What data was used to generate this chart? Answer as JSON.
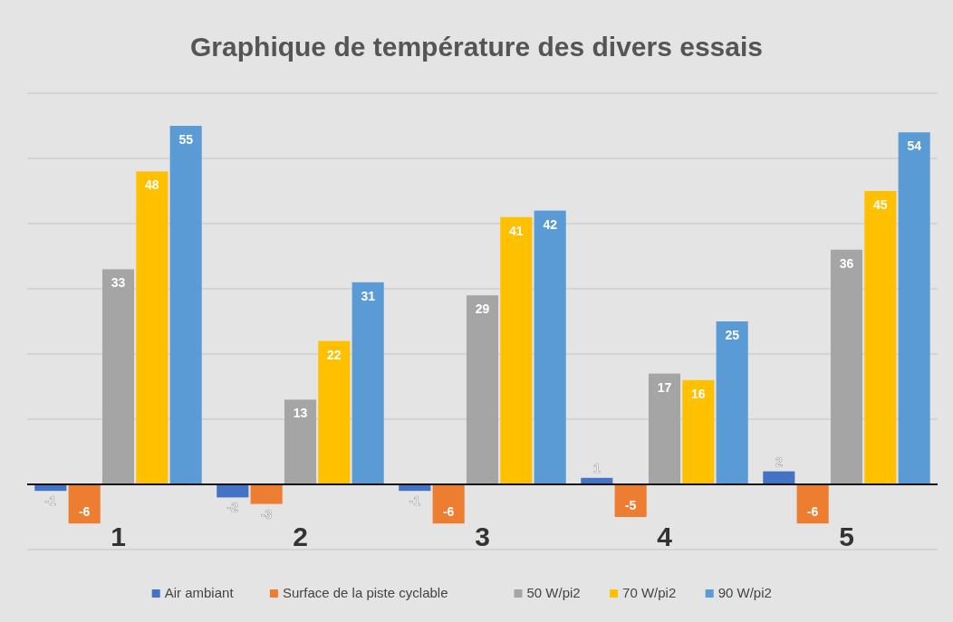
{
  "chart_data": {
    "type": "bar",
    "title": "Graphique de température des divers essais",
    "categories": [
      "1",
      "2",
      "3",
      "4",
      "5"
    ],
    "series": [
      {
        "name": "Air ambiant",
        "color": "#4472c4",
        "values": [
          -1,
          -2,
          -1,
          1,
          2
        ]
      },
      {
        "name": "Surface de la piste cyclable",
        "color": "#ed7d31",
        "values": [
          -6,
          -3,
          -6,
          -5,
          -6
        ]
      },
      {
        "name": "50 W/pi2",
        "color": "#a5a5a5",
        "values": [
          33,
          13,
          29,
          17,
          36
        ]
      },
      {
        "name": "70 W/pi2",
        "color": "#ffc000",
        "values": [
          48,
          22,
          41,
          16,
          45
        ]
      },
      {
        "name": "90 W/pi2",
        "color": "#5b9bd5",
        "values": [
          55,
          31,
          42,
          25,
          54
        ]
      }
    ],
    "ylim": [
      -10,
      60
    ],
    "yticks": [
      {
        "value": -10,
        "label": null
      },
      {
        "value": 0,
        "label": null
      },
      {
        "value": 10,
        "label": null
      },
      {
        "value": 20,
        "label": null
      },
      {
        "value": 30,
        "label": null
      },
      {
        "value": 40,
        "label": null
      },
      {
        "value": 50,
        "label": null
      },
      {
        "value": 60,
        "label": null
      }
    ],
    "tick_labels": "x",
    "grid": "y",
    "data_labels": true,
    "legend": "bottom"
  }
}
